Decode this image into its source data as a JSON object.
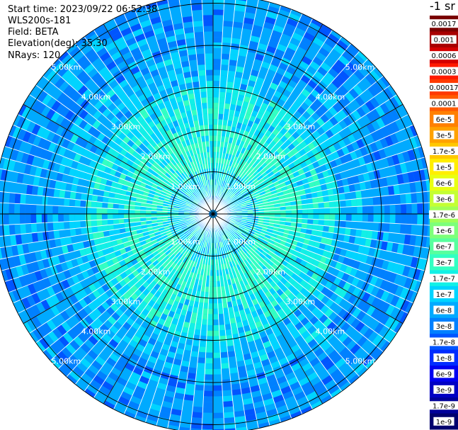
{
  "header": {
    "start_time": "Start time: 2023/09/22 06:52:38",
    "instrument": "WLS200s-181",
    "field": "Field: BETA",
    "elevation": "Elevation(deg): 35.30",
    "nrays": "NRays: 120"
  },
  "colorbar": {
    "unit_label": "-1 sr",
    "levels": [
      {
        "label": "0.0017",
        "color": "#7a0000"
      },
      {
        "label": "0.001",
        "color": "#a80000"
      },
      {
        "label": "0.0006",
        "color": "#d40000"
      },
      {
        "label": "0.0003",
        "color": "#ff1a00"
      },
      {
        "label": "0.00017",
        "color": "#ff3a00"
      },
      {
        "label": "0.0001",
        "color": "#ff5a00"
      },
      {
        "label": "6e-5",
        "color": "#ff8000"
      },
      {
        "label": "3e-5",
        "color": "#ffa200"
      },
      {
        "label": "1.7e-5",
        "color": "#ffc800"
      },
      {
        "label": "1e-5",
        "color": "#ffee00"
      },
      {
        "label": "6e-6",
        "color": "#e8ff12"
      },
      {
        "label": "3e-6",
        "color": "#c4ff33"
      },
      {
        "label": "1.7e-6",
        "color": "#a0ff57"
      },
      {
        "label": "1e-6",
        "color": "#7dff7a"
      },
      {
        "label": "6e-7",
        "color": "#57ff9e"
      },
      {
        "label": "3e-7",
        "color": "#33ffc2"
      },
      {
        "label": "1.7e-7",
        "color": "#12f0e6"
      },
      {
        "label": "1e-7",
        "color": "#00d4ff"
      },
      {
        "label": "6e-8",
        "color": "#00aaff"
      },
      {
        "label": "3e-8",
        "color": "#0080ff"
      },
      {
        "label": "1.7e-8",
        "color": "#0055ff"
      },
      {
        "label": "1e-8",
        "color": "#002cff"
      },
      {
        "label": "6e-9",
        "color": "#0000f0"
      },
      {
        "label": "3e-9",
        "color": "#0000c4"
      },
      {
        "label": "1.7e-9",
        "color": "#00009a"
      },
      {
        "label": "1e-9",
        "color": "#00006e"
      }
    ]
  },
  "chart_data": {
    "type": "heatmap",
    "projection": "polar (PPI scan)",
    "field": "BETA",
    "nrays": 120,
    "range_ring_labels": [
      "1.00km",
      "2.00km",
      "3.00km",
      "4.00km",
      "5.00km"
    ],
    "range_rings_km": [
      1,
      2,
      3,
      4,
      5
    ],
    "max_range_km": 5.2,
    "dominant_values": [
      {
        "range_km": [
          0,
          1
        ],
        "beta": "3e-8"
      },
      {
        "range_km": [
          1,
          3
        ],
        "beta": "3e-7"
      },
      {
        "range_km": [
          3,
          5.2
        ],
        "beta": "1e-7 to 1e-8"
      }
    ],
    "grid": true
  }
}
